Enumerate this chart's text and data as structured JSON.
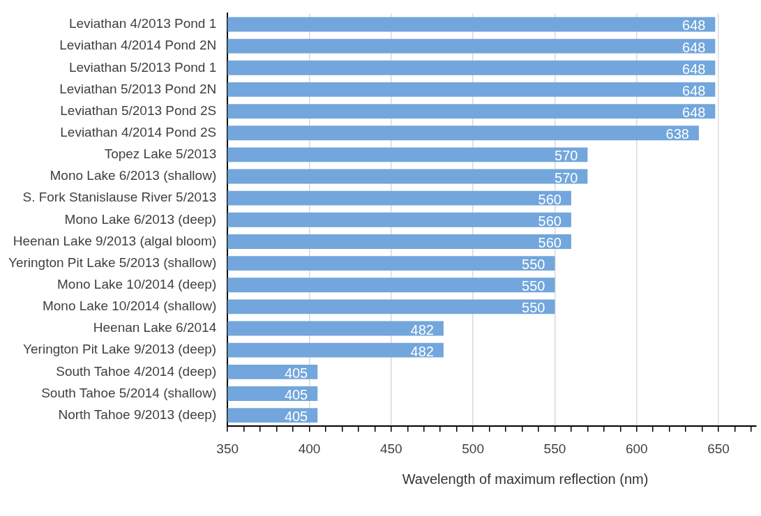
{
  "chart_data": {
    "type": "bar",
    "orientation": "horizontal",
    "xlabel": "Wavelength of maximum reflection (nm)",
    "categories": [
      "Leviathan 4/2013 Pond 1",
      "Leviathan 4/2014 Pond 2N",
      "Leviathan 5/2013 Pond 1",
      "Leviathan 5/2013 Pond 2N",
      "Leviathan 5/2013 Pond 2S",
      "Leviathan 4/2014 Pond 2S",
      "Topez Lake 5/2013",
      "Mono Lake 6/2013 (shallow)",
      "S. Fork Stanislause River 5/2013",
      "Mono Lake 6/2013 (deep)",
      "Heenan Lake 9/2013 (algal bloom)",
      "Yerington Pit Lake 5/2013 (shallow)",
      "Mono Lake 10/2014 (deep)",
      "Mono Lake 10/2014 (shallow)",
      "Heenan Lake 6/2014",
      "Yerington Pit Lake 9/2013 (deep)",
      "South Tahoe 4/2014 (deep)",
      "South Tahoe 5/2014 (shallow)",
      "North Tahoe 9/2013 (deep)"
    ],
    "values": [
      648,
      648,
      648,
      648,
      648,
      638,
      570,
      570,
      560,
      560,
      560,
      550,
      550,
      550,
      482,
      482,
      405,
      405,
      405
    ],
    "color": "#72a6dc",
    "data_labels": true,
    "grid": "x",
    "xlim": [
      350,
      673
    ],
    "xticks": [
      350,
      {
        "value": 360,
        "label": null
      },
      {
        "value": 370,
        "label": null
      },
      {
        "value": 380,
        "label": null
      },
      {
        "value": 390,
        "label": null
      },
      400,
      {
        "value": 410,
        "label": null
      },
      {
        "value": 420,
        "label": null
      },
      {
        "value": 430,
        "label": null
      },
      {
        "value": 440,
        "label": null
      },
      450,
      {
        "value": 460,
        "label": null
      },
      {
        "value": 470,
        "label": null
      },
      {
        "value": 480,
        "label": null
      },
      {
        "value": 490,
        "label": null
      },
      500,
      {
        "value": 510,
        "label": null
      },
      {
        "value": 520,
        "label": null
      },
      {
        "value": 530,
        "label": null
      },
      {
        "value": 540,
        "label": null
      },
      550,
      {
        "value": 560,
        "label": null
      },
      {
        "value": 570,
        "label": null
      },
      {
        "value": 580,
        "label": null
      },
      {
        "value": 590,
        "label": null
      },
      600,
      {
        "value": 610,
        "label": null
      },
      {
        "value": 620,
        "label": null
      },
      {
        "value": 630,
        "label": null
      },
      {
        "value": 640,
        "label": null
      },
      650,
      {
        "value": 660,
        "label": null
      },
      {
        "value": 670,
        "label": null
      }
    ]
  }
}
